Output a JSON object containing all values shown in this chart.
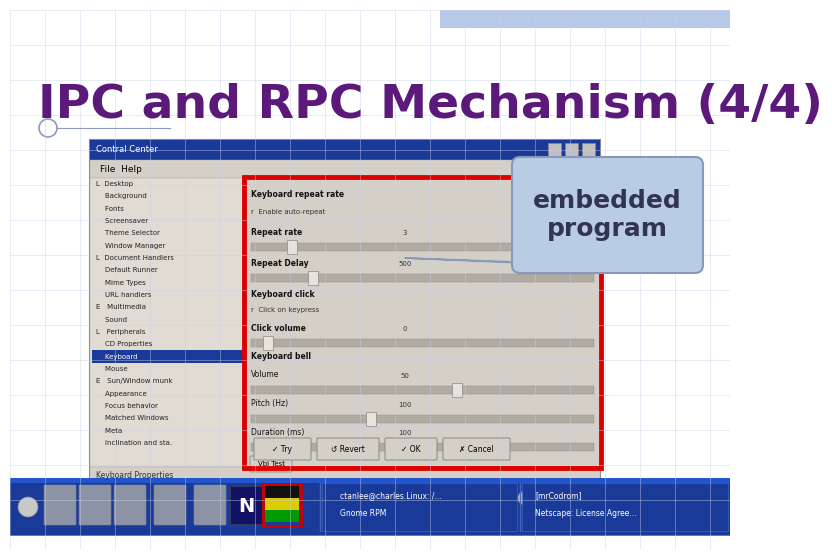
{
  "title": "IPC and RPC Mechanism (4/4)",
  "title_color": "#5b1a7a",
  "title_fontsize": 34,
  "bg_color": "#ffffff",
  "grid_color": "#c8d0e8",
  "header_bar_color": "#b8c8e8",
  "callout_text": "embedded\nprogram",
  "callout_bg": "#b8cce4",
  "callout_border": "#8899bb",
  "callout_fontsize": 18,
  "red_box_color": "#dd0000",
  "window_bg": "#d4d0c8",
  "window_titlebar": "#1a3a9a",
  "taskbar_bg": "#1a3a9a",
  "sidebar_bg": "#e0dcd4",
  "sidebar_hl": "#1a3a9a",
  "right_panel_bg": "#d4d0c8",
  "slider_track": "#b0aca4",
  "slider_thumb": "#e8e4dc",
  "btn_bg": "#d4d0c8"
}
